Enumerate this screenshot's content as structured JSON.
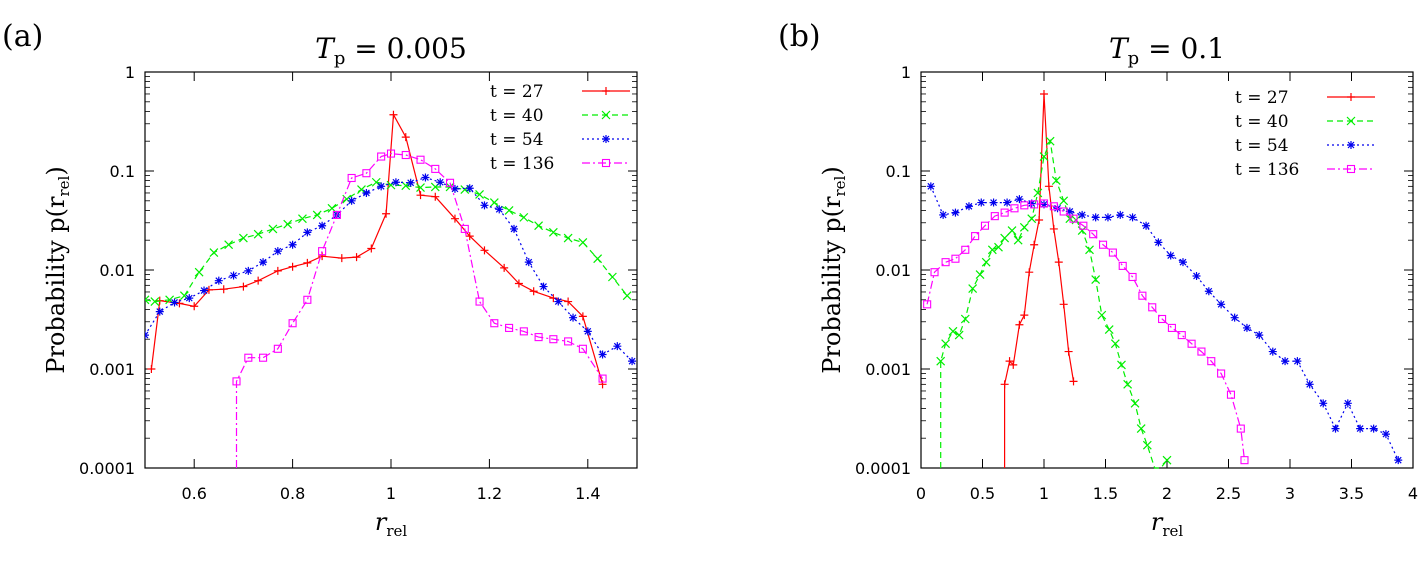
{
  "chart_data": [
    {
      "type": "line",
      "panel_label": "(a)",
      "title": "T_p = 0.005",
      "title_main": "T",
      "title_sub": "p",
      "title_rest": " = 0.005",
      "ylabel": "Probability p(r_rel)",
      "ylabel_main": "Probability p(r",
      "ylabel_sub": "rel",
      "ylabel_end": ")",
      "xlabel": "r_rel",
      "xlabel_main": "r",
      "xlabel_sub": "rel",
      "yscale": "log",
      "xlim": [
        0.5,
        1.5
      ],
      "ylim": [
        0.0001,
        1
      ],
      "xticks": [
        0.6,
        0.8,
        1,
        1.2,
        1.4
      ],
      "xtick_labels": [
        "0.6",
        "0.8",
        "1",
        "1.2",
        "1.4"
      ],
      "yticks": [
        0.0001,
        0.001,
        0.01,
        0.1,
        1
      ],
      "ytick_labels": [
        "0.0001",
        "0.001",
        "0.01",
        "0.1",
        "1"
      ],
      "legend_position": "top-right",
      "series": [
        {
          "name": "t = 27",
          "color": "#ff0000",
          "marker": "plus",
          "dash": "solid",
          "x": [
            0.513,
            0.53,
            0.57,
            0.6,
            0.63,
            0.66,
            0.7,
            0.73,
            0.77,
            0.8,
            0.83,
            0.86,
            0.9,
            0.93,
            0.96,
            0.99,
            1.005,
            1.03,
            1.06,
            1.09,
            1.13,
            1.16,
            1.19,
            1.23,
            1.26,
            1.29,
            1.33,
            1.36,
            1.39,
            1.43
          ],
          "y": [
            0.001,
            0.0049,
            0.0046,
            0.0043,
            0.0063,
            0.0064,
            0.0068,
            0.0078,
            0.0098,
            0.0108,
            0.0118,
            0.0138,
            0.0132,
            0.0135,
            0.0165,
            0.037,
            0.37,
            0.22,
            0.057,
            0.055,
            0.033,
            0.022,
            0.0158,
            0.0105,
            0.0073,
            0.0061,
            0.0052,
            0.0048,
            0.0034,
            0.0007
          ]
        },
        {
          "name": "t = 40",
          "color": "#00ee00",
          "marker": "x",
          "dash": "dashed",
          "x": [
            0.5,
            0.52,
            0.55,
            0.58,
            0.61,
            0.64,
            0.67,
            0.7,
            0.73,
            0.76,
            0.79,
            0.82,
            0.85,
            0.88,
            0.91,
            0.94,
            0.97,
            1.0,
            1.03,
            1.06,
            1.09,
            1.12,
            1.15,
            1.18,
            1.21,
            1.24,
            1.27,
            1.3,
            1.33,
            1.36,
            1.39,
            1.42,
            1.45,
            1.48
          ],
          "y": [
            0.005,
            0.0048,
            0.005,
            0.0055,
            0.0095,
            0.015,
            0.018,
            0.021,
            0.023,
            0.026,
            0.029,
            0.033,
            0.036,
            0.042,
            0.052,
            0.065,
            0.077,
            0.072,
            0.071,
            0.068,
            0.069,
            0.069,
            0.065,
            0.058,
            0.048,
            0.04,
            0.034,
            0.028,
            0.024,
            0.021,
            0.019,
            0.013,
            0.0085,
            0.0055
          ]
        },
        {
          "name": "t = 54",
          "color": "#0000ee",
          "marker": "star",
          "dash": "dotted",
          "x": [
            0.5,
            0.53,
            0.56,
            0.59,
            0.62,
            0.65,
            0.68,
            0.71,
            0.74,
            0.77,
            0.8,
            0.83,
            0.86,
            0.89,
            0.92,
            0.95,
            0.98,
            1.01,
            1.04,
            1.07,
            1.1,
            1.13,
            1.16,
            1.19,
            1.22,
            1.25,
            1.28,
            1.31,
            1.34,
            1.37,
            1.4,
            1.43,
            1.46,
            1.49
          ],
          "y": [
            0.0022,
            0.0038,
            0.0047,
            0.0052,
            0.0062,
            0.0078,
            0.0088,
            0.0098,
            0.012,
            0.0155,
            0.018,
            0.024,
            0.028,
            0.036,
            0.05,
            0.06,
            0.07,
            0.077,
            0.076,
            0.086,
            0.077,
            0.066,
            0.067,
            0.045,
            0.041,
            0.026,
            0.012,
            0.0068,
            0.0048,
            0.0033,
            0.0024,
            0.0014,
            0.0017,
            0.0012
          ]
        },
        {
          "name": "t = 136",
          "color": "#ff00ff",
          "marker": "square",
          "dash": "dashdot",
          "x": [
            0.686,
            0.686,
            0.71,
            0.74,
            0.77,
            0.8,
            0.83,
            0.86,
            0.89,
            0.92,
            0.95,
            0.98,
            1.0,
            1.03,
            1.06,
            1.09,
            1.12,
            1.15,
            1.18,
            1.21,
            1.24,
            1.27,
            1.3,
            1.33,
            1.36,
            1.39,
            1.43
          ],
          "y": [
            0.0001,
            0.00075,
            0.0013,
            0.0013,
            0.0016,
            0.0029,
            0.005,
            0.0155,
            0.036,
            0.085,
            0.095,
            0.14,
            0.15,
            0.145,
            0.13,
            0.105,
            0.076,
            0.026,
            0.0048,
            0.0029,
            0.0026,
            0.0024,
            0.0021,
            0.002,
            0.0019,
            0.0016,
            0.0008
          ]
        }
      ]
    },
    {
      "type": "line",
      "panel_label": "(b)",
      "title": "T_p = 0.1",
      "title_main": "T",
      "title_sub": "p",
      "title_rest": " = 0.1",
      "ylabel": "Probability p(r_rel)",
      "ylabel_main": "Probability p(r",
      "ylabel_sub": "rel",
      "ylabel_end": ")",
      "xlabel": "r_rel",
      "xlabel_main": "r",
      "xlabel_sub": "rel",
      "yscale": "log",
      "xlim": [
        0,
        4
      ],
      "ylim": [
        0.0001,
        1
      ],
      "xticks": [
        0,
        0.5,
        1,
        1.5,
        2,
        2.5,
        3,
        3.5,
        4
      ],
      "xtick_labels": [
        "0",
        "0.5",
        "1",
        "1.5",
        "2",
        "2.5",
        "3",
        "3.5",
        "4"
      ],
      "yticks": [
        0.0001,
        0.001,
        0.01,
        0.1,
        1
      ],
      "ytick_labels": [
        "0.0001",
        "0.001",
        "0.01",
        "0.1",
        "1"
      ],
      "legend_position": "top-right",
      "series": [
        {
          "name": "t = 27",
          "color": "#ff0000",
          "marker": "plus",
          "dash": "solid",
          "x": [
            0.68,
            0.68,
            0.72,
            0.75,
            0.8,
            0.84,
            0.88,
            0.92,
            0.96,
            1.0,
            1.04,
            1.08,
            1.12,
            1.16,
            1.2,
            1.24
          ],
          "y": [
            0.0001,
            0.0007,
            0.0012,
            0.0011,
            0.0028,
            0.0035,
            0.0095,
            0.018,
            0.032,
            0.6,
            0.07,
            0.026,
            0.012,
            0.0045,
            0.0015,
            0.00075
          ]
        },
        {
          "name": "t = 40",
          "color": "#00ee00",
          "marker": "x",
          "dash": "dashed",
          "x": [
            0.16,
            0.16,
            0.2,
            0.26,
            0.31,
            0.36,
            0.42,
            0.48,
            0.53,
            0.58,
            0.63,
            0.68,
            0.74,
            0.79,
            0.84,
            0.9,
            0.95,
            1.0,
            1.05,
            1.1,
            1.16,
            1.21,
            1.26,
            1.31,
            1.37,
            1.42,
            1.47,
            1.53,
            1.58,
            1.63,
            1.68,
            1.74,
            1.79,
            1.84,
            1.9,
            1.95,
            2.0
          ],
          "y": [
            0.0001,
            0.0012,
            0.0018,
            0.0024,
            0.0022,
            0.0032,
            0.0065,
            0.009,
            0.012,
            0.016,
            0.017,
            0.021,
            0.025,
            0.02,
            0.027,
            0.033,
            0.06,
            0.14,
            0.2,
            0.08,
            0.05,
            0.033,
            0.032,
            0.025,
            0.016,
            0.008,
            0.0035,
            0.0025,
            0.0018,
            0.0011,
            0.0007,
            0.00045,
            0.00025,
            0.00017,
            0.0001,
            0.0001,
            0.00012
          ]
        },
        {
          "name": "t = 54",
          "color": "#0000ee",
          "marker": "star",
          "dash": "dotted",
          "x": [
            0.08,
            0.18,
            0.28,
            0.39,
            0.49,
            0.59,
            0.7,
            0.8,
            0.9,
            1.0,
            1.11,
            1.21,
            1.31,
            1.42,
            1.52,
            1.62,
            1.72,
            1.83,
            1.93,
            2.03,
            2.13,
            2.24,
            2.34,
            2.44,
            2.55,
            2.65,
            2.75,
            2.86,
            2.96,
            3.06,
            3.16,
            3.27,
            3.37,
            3.47,
            3.57,
            3.68,
            3.78,
            3.88
          ],
          "y": [
            0.07,
            0.036,
            0.038,
            0.044,
            0.048,
            0.048,
            0.048,
            0.052,
            0.047,
            0.046,
            0.042,
            0.039,
            0.036,
            0.034,
            0.034,
            0.036,
            0.034,
            0.028,
            0.019,
            0.014,
            0.012,
            0.0087,
            0.0061,
            0.0045,
            0.0033,
            0.0026,
            0.0022,
            0.0015,
            0.0012,
            0.0012,
            0.0007,
            0.00045,
            0.00025,
            0.00045,
            0.00025,
            0.00025,
            0.00022,
            0.00012
          ]
        },
        {
          "name": "t = 136",
          "color": "#ff00ff",
          "marker": "square",
          "dash": "dashdot",
          "x": [
            0.05,
            0.11,
            0.2,
            0.28,
            0.36,
            0.44,
            0.52,
            0.6,
            0.68,
            0.76,
            0.84,
            0.92,
            1.0,
            1.08,
            1.16,
            1.24,
            1.32,
            1.4,
            1.48,
            1.56,
            1.64,
            1.72,
            1.8,
            1.88,
            1.96,
            2.04,
            2.12,
            2.2,
            2.28,
            2.36,
            2.44,
            2.52,
            2.6,
            2.63
          ],
          "y": [
            0.0045,
            0.0095,
            0.012,
            0.013,
            0.016,
            0.022,
            0.028,
            0.035,
            0.038,
            0.042,
            0.045,
            0.046,
            0.047,
            0.044,
            0.039,
            0.033,
            0.028,
            0.023,
            0.018,
            0.015,
            0.011,
            0.0085,
            0.0055,
            0.0042,
            0.0032,
            0.0026,
            0.0022,
            0.0018,
            0.0015,
            0.0012,
            0.0009,
            0.00055,
            0.00025,
            0.00012
          ]
        }
      ]
    }
  ]
}
